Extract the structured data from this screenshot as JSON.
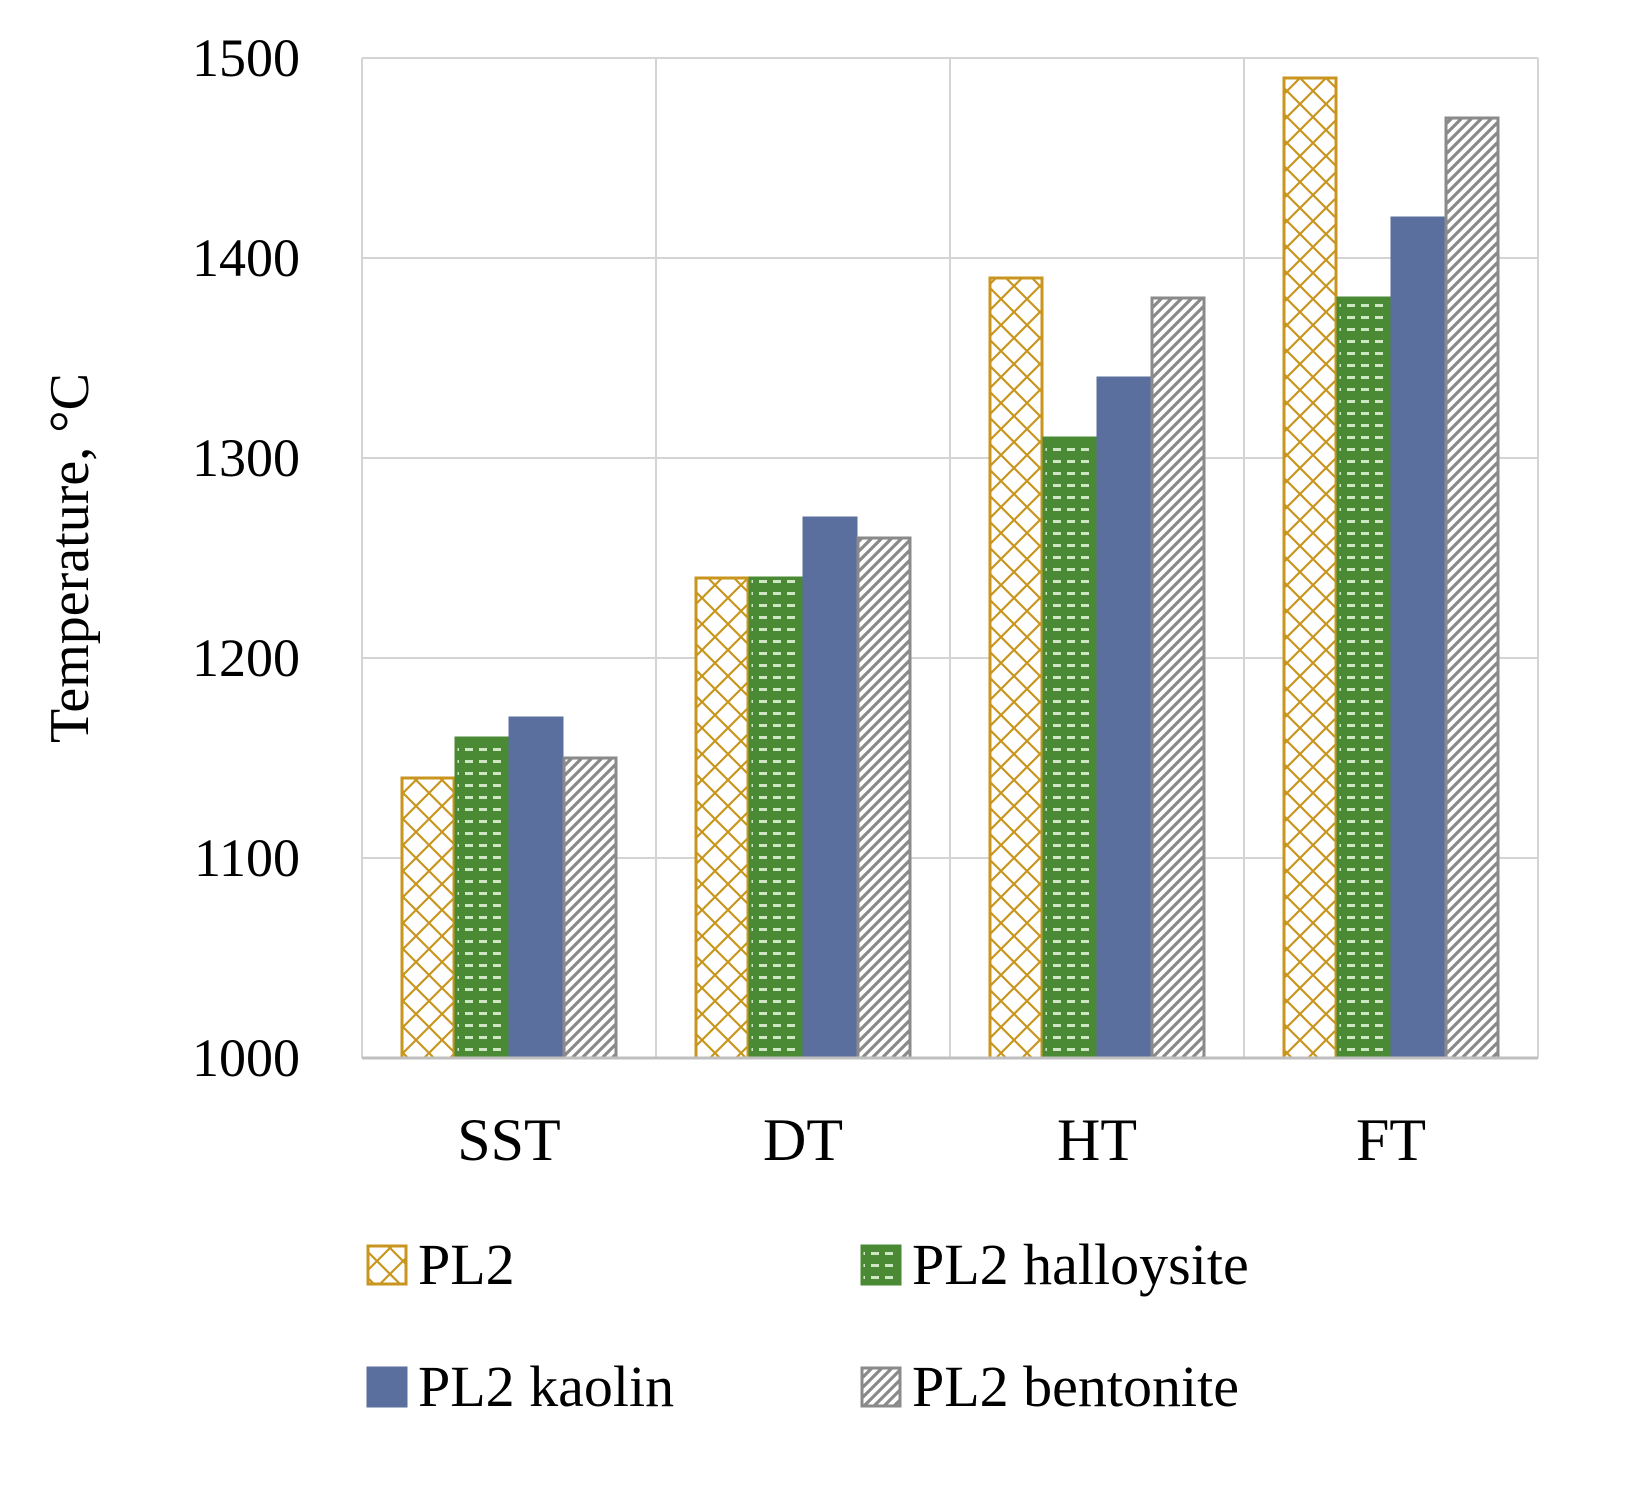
{
  "chart_data": {
    "type": "bar",
    "categories": [
      "SST",
      "DT",
      "HT",
      "FT"
    ],
    "series": [
      {
        "name": "PL2",
        "values": [
          1140,
          1240,
          1390,
          1490
        ],
        "color": "#c8961e",
        "pattern": "crosshatch"
      },
      {
        "name": "PL2 halloysite",
        "values": [
          1160,
          1240,
          1310,
          1380
        ],
        "color": "#4a8a35",
        "pattern": "dots"
      },
      {
        "name": "PL2 kaolin",
        "values": [
          1170,
          1270,
          1340,
          1420
        ],
        "color": "#5a6f9e",
        "pattern": "solid"
      },
      {
        "name": "PL2 bentonite",
        "values": [
          1150,
          1260,
          1380,
          1470
        ],
        "color": "#8a8a8a",
        "pattern": "diagonal"
      }
    ],
    "title": "",
    "xlabel": "",
    "ylabel": "Temperature, °C",
    "ylim": [
      1000,
      1500
    ],
    "yticks": [
      1000,
      1100,
      1200,
      1300,
      1400,
      1500
    ],
    "grid": true,
    "legend_position": "bottom"
  }
}
